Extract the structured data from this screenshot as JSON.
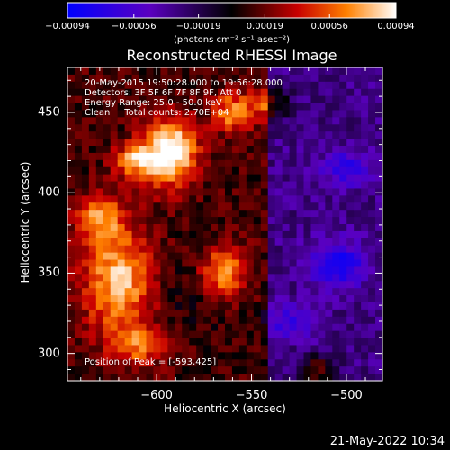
{
  "chart_data": {
    "type": "heatmap",
    "title": "Reconstructed RHESSI Image",
    "xlabel": "Heliocentric X (arcsec)",
    "ylabel": "Heliocentric Y (arcsec)",
    "xlim": [
      -647,
      -481
    ],
    "ylim": [
      283,
      478
    ],
    "xticks": [
      -600,
      -550,
      -500
    ],
    "yticks": [
      300,
      350,
      400,
      450
    ],
    "colorbar": {
      "label": "(photons cm⁻² s⁻¹ asec⁻²)",
      "ticks": [
        "-0.00094",
        "-0.00056",
        "-0.00019",
        "0.00019",
        "0.00056",
        "0.00094"
      ],
      "range": [
        -0.00094,
        0.00094
      ]
    },
    "annotations": [
      "20-May-2015 19:50:28.000 to 19:56:28.000",
      "Detectors: 3F 5F 6F 7F 8F 9F, Att 0",
      "Energy Range: 25.0 - 50.0 keV",
      "Clean     Total counts: 2.70E+04"
    ],
    "peak_label": "Position of Peak = [-593,425]",
    "peak": {
      "x": -593,
      "y": 425,
      "value": 0.00094
    },
    "sources": [
      {
        "x": -593,
        "y": 425,
        "rx": 14,
        "ry": 20,
        "amp": 0.00094
      },
      {
        "x": -612,
        "y": 420,
        "rx": 10,
        "ry": 10,
        "amp": 0.0006
      },
      {
        "x": -620,
        "y": 345,
        "rx": 18,
        "ry": 32,
        "amp": 0.0007
      },
      {
        "x": -630,
        "y": 385,
        "rx": 12,
        "ry": 14,
        "amp": 0.00055
      },
      {
        "x": -565,
        "y": 350,
        "rx": 12,
        "ry": 16,
        "amp": 0.00065
      },
      {
        "x": -560,
        "y": 450,
        "rx": 10,
        "ry": 12,
        "amp": 0.0006
      },
      {
        "x": -540,
        "y": 455,
        "rx": 10,
        "ry": 10,
        "amp": 0.00045
      },
      {
        "x": -500,
        "y": 415,
        "rx": 12,
        "ry": 10,
        "amp": -0.00045
      },
      {
        "x": -505,
        "y": 355,
        "rx": 14,
        "ry": 14,
        "amp": -0.00055
      },
      {
        "x": -530,
        "y": 320,
        "rx": 14,
        "ry": 10,
        "amp": -0.0004
      },
      {
        "x": -580,
        "y": 340,
        "rx": 20,
        "ry": 25,
        "amp": -0.00012
      },
      {
        "x": -610,
        "y": 305,
        "rx": 14,
        "ry": 12,
        "amp": 0.00045
      },
      {
        "x": -515,
        "y": 290,
        "rx": 10,
        "ry": 8,
        "amp": 0.0005
      }
    ]
  },
  "footer": {
    "date": "21-May-2022 10:34"
  }
}
